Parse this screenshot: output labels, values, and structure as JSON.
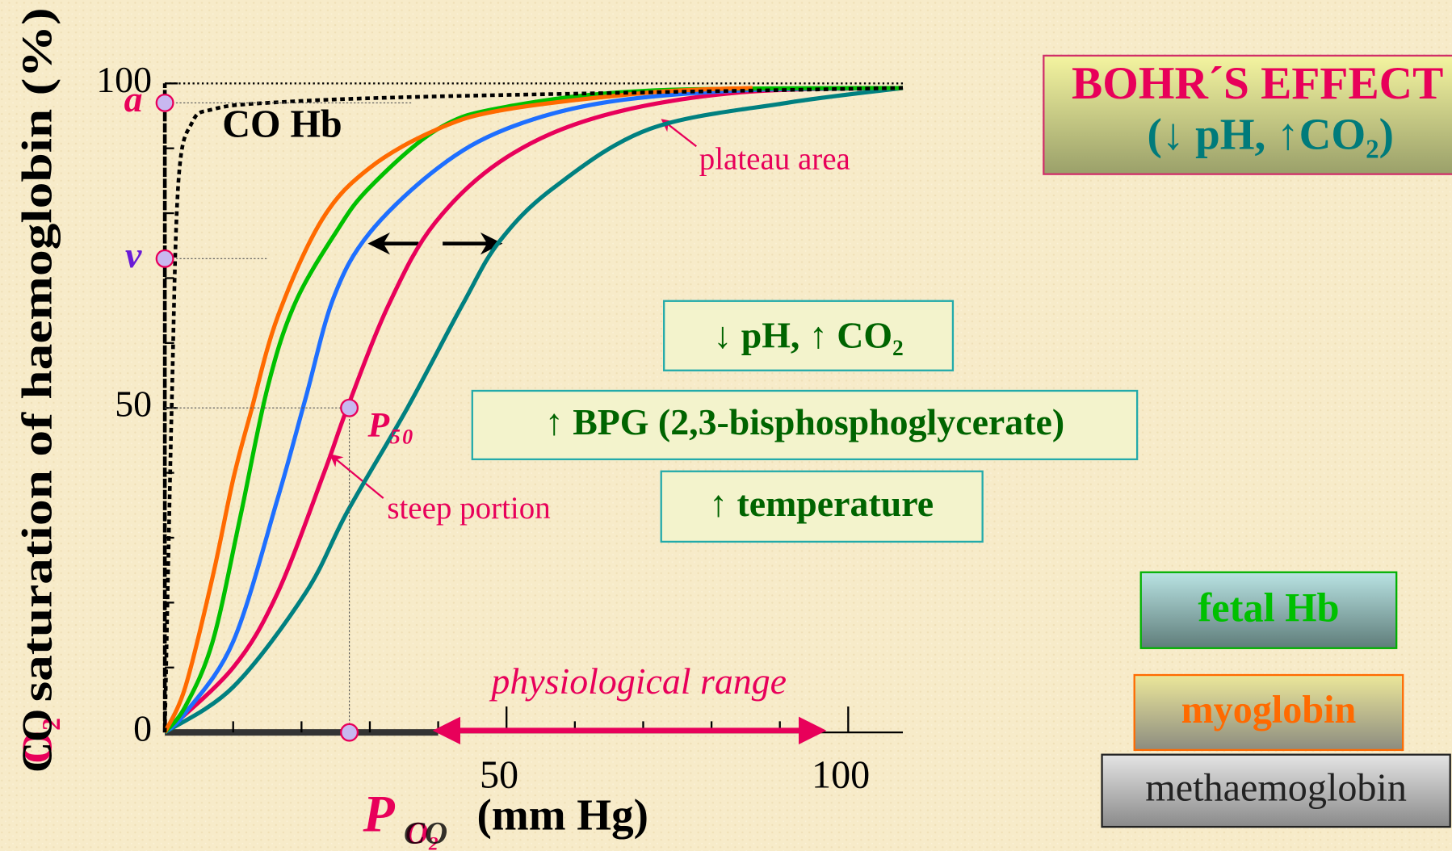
{
  "chart_data": {
    "type": "line",
    "ylabel": {
      "gas": "O₂",
      "gas_overlay": "CO",
      "text": "saturation of haemoglobin (%)"
    },
    "xlabel": {
      "symbol": "P",
      "sub": "O₂",
      "sub_overlay": "CO",
      "unit": "(mm Hg)"
    },
    "xlim": [
      0,
      108
    ],
    "ylim": [
      0,
      100
    ],
    "xticks": [
      50,
      100
    ],
    "yticks": [
      0,
      50,
      100
    ],
    "xminor_ticks": [
      10,
      20,
      30,
      40,
      60,
      70,
      80,
      90
    ],
    "yminor_ticks": [
      10,
      20,
      30,
      40,
      60,
      70,
      80,
      90
    ],
    "series": [
      {
        "name": "myoglobin",
        "color": "#ff6a00",
        "x": [
          0,
          3,
          7,
          10,
          12.5,
          16.5,
          23,
          30,
          40,
          50,
          71,
          86
        ],
        "values": [
          0,
          7,
          24,
          39,
          49,
          64,
          79,
          87,
          93,
          96,
          98.6,
          99.3
        ]
      },
      {
        "name": "fetal Hb",
        "color": "#00c000",
        "x": [
          0,
          3,
          7,
          11,
          15,
          19,
          25,
          30,
          40,
          50,
          71,
          108
        ],
        "values": [
          0,
          4,
          14,
          33,
          53,
          66,
          77,
          84,
          93,
          96.4,
          98.9,
          99.3
        ]
      },
      {
        "color": "#1e6fff",
        "x": [
          0,
          3,
          10,
          16.5,
          20.6,
          24.7,
          30,
          40,
          50,
          64,
          84,
          108
        ],
        "values": [
          0,
          3,
          14,
          36,
          51.5,
          67,
          77,
          87,
          93,
          97,
          98.9,
          99.3
        ]
      },
      {
        "color": "#e8005a",
        "x": [
          0,
          10,
          16.5,
          23.3,
          26.7,
          32.8,
          39.6,
          50,
          64,
          84,
          108
        ],
        "values": [
          0,
          10,
          21.5,
          40,
          50,
          66,
          78.6,
          88.6,
          95,
          98.6,
          99.3
        ]
      },
      {
        "color": "#008080",
        "x": [
          0,
          10,
          20.6,
          26.7,
          35.5,
          43.6,
          49,
          57,
          71,
          91,
          108
        ],
        "values": [
          0,
          7,
          21.5,
          34,
          50,
          66,
          75.7,
          84,
          93,
          97,
          99.3
        ]
      },
      {
        "name": "CO Hb",
        "color": "#000000",
        "dashed": true,
        "x": [
          0,
          1,
          2,
          4,
          7,
          15,
          40,
          108
        ],
        "values": [
          0,
          50,
          85,
          94,
          96,
          97,
          98,
          99.3
        ]
      }
    ],
    "points": [
      {
        "label": "a",
        "x": 0,
        "y": 97
      },
      {
        "label": "v",
        "x": 0,
        "y": 73
      },
      {
        "label": "P₅₀",
        "x": 27,
        "y": 50
      },
      {
        "x": 27,
        "y": 0
      }
    ],
    "range": [
      40,
      96
    ],
    "annotations": {
      "plateau": "plateau area",
      "steep": "steep portion",
      "range_label": "physiological range"
    },
    "boxes": {
      "bohr_title": "BOHR´S EFFECT",
      "bohr_sub": "(↓ pH, ↑CO₂)",
      "ph": "↓ pH, ↑ CO₂",
      "bpg": "↑ BPG (2,3-bisphosphoglycerate)",
      "temp": "↑ temperature"
    },
    "methaemoglobin": "methaemoglobin"
  }
}
